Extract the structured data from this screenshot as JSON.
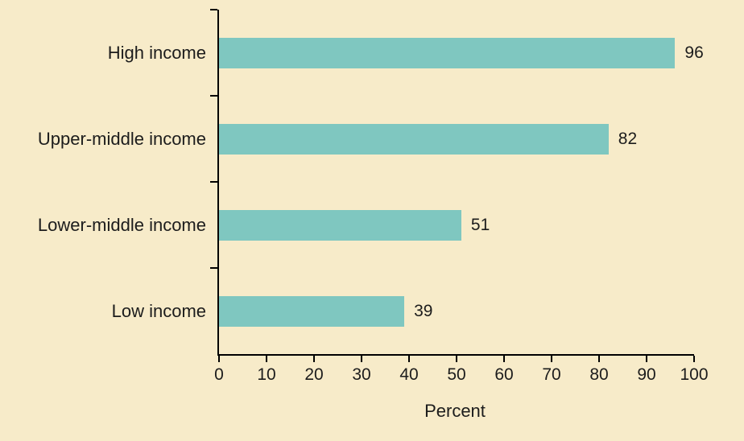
{
  "colors": {
    "background": "#f7ebc9",
    "bar": "#7fc7c0",
    "text": "#1c1c1c",
    "axis": "#000000"
  },
  "chart_data": {
    "type": "bar",
    "orientation": "horizontal",
    "categories": [
      "High income",
      "Upper-middle income",
      "Lower-middle income",
      "Low income"
    ],
    "values": [
      96,
      82,
      51,
      39
    ],
    "value_labels": [
      "96",
      "82",
      "51",
      "39"
    ],
    "xlabel": "Percent",
    "ylabel": "",
    "xlim": [
      0,
      100
    ],
    "xticks": [
      0,
      10,
      20,
      30,
      40,
      50,
      60,
      70,
      80,
      90,
      100
    ],
    "grid": false,
    "legend": false
  }
}
